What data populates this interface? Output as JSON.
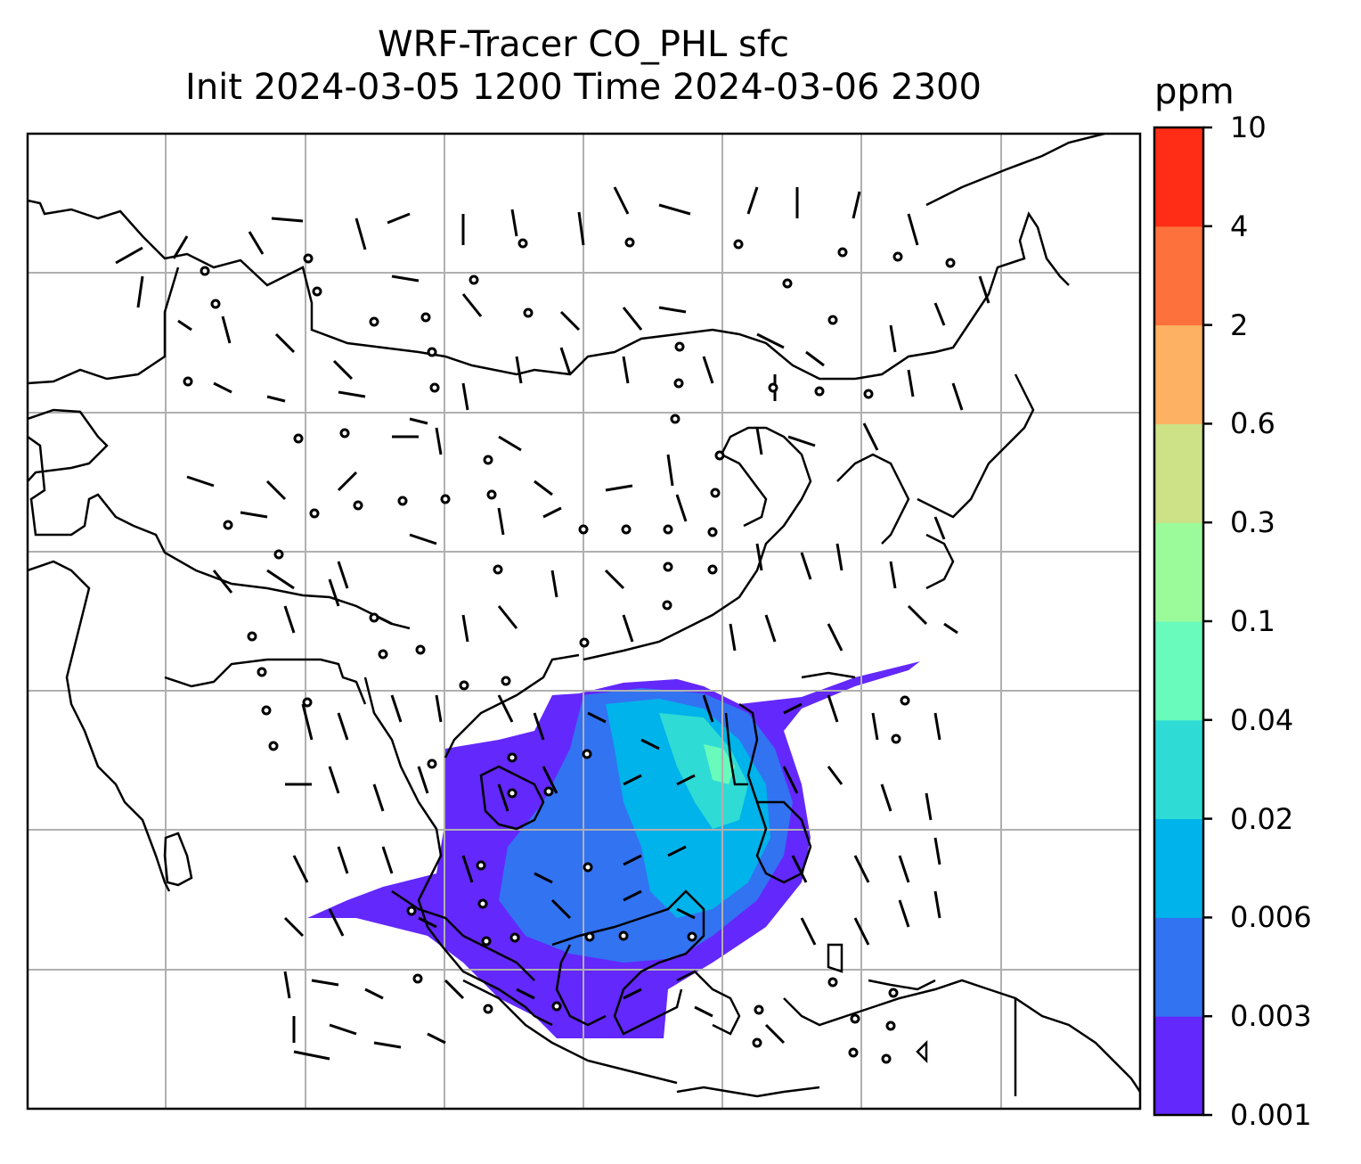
{
  "title": {
    "line1": "WRF-Tracer CO_PHL sfc",
    "line2": "Init 2024-03-05 1200 Time 2024-03-06 2300"
  },
  "colorbar": {
    "unit": "ppm",
    "levels": [
      "0.001",
      "0.003",
      "0.006",
      "0.02",
      "0.04",
      "0.1",
      "0.3",
      "0.6",
      "2",
      "4",
      "10"
    ],
    "colors": [
      "#6328fb",
      "#3273f2",
      "#00b3ea",
      "#2fdcd5",
      "#69fbbb",
      "#9bfb9b",
      "#cde186",
      "#fcb262",
      "#fd713d",
      "#ff2d15"
    ]
  },
  "map": {
    "field": "CO_PHL surface tracer concentration",
    "wind_barbs": true,
    "gridlines": true
  }
}
